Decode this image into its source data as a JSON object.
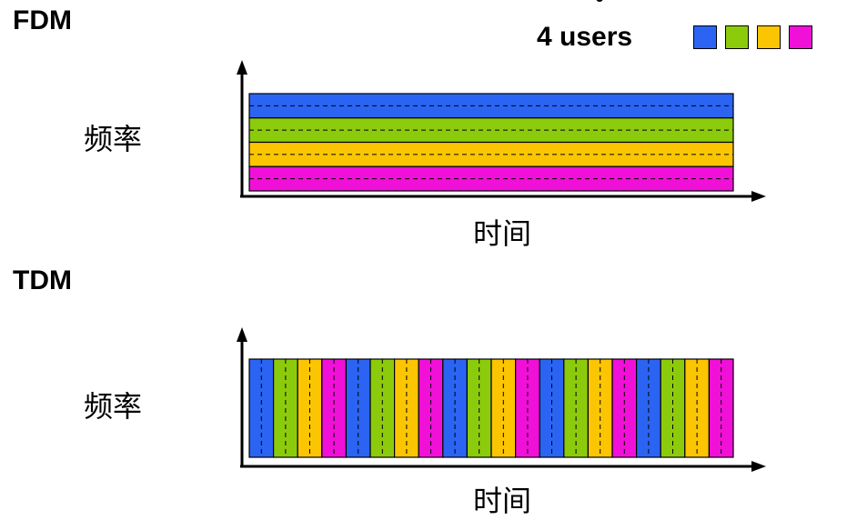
{
  "legend": {
    "label": "4 users",
    "colors": [
      "#2b64f2",
      "#8ccb0c",
      "#fcc502",
      "#f010d8"
    ]
  },
  "fdm": {
    "title": "FDM",
    "y_label": "频率",
    "x_label": "时间"
  },
  "tdm": {
    "title": "TDM",
    "y_label": "频率",
    "x_label": "时间",
    "slot_count": 20
  }
}
